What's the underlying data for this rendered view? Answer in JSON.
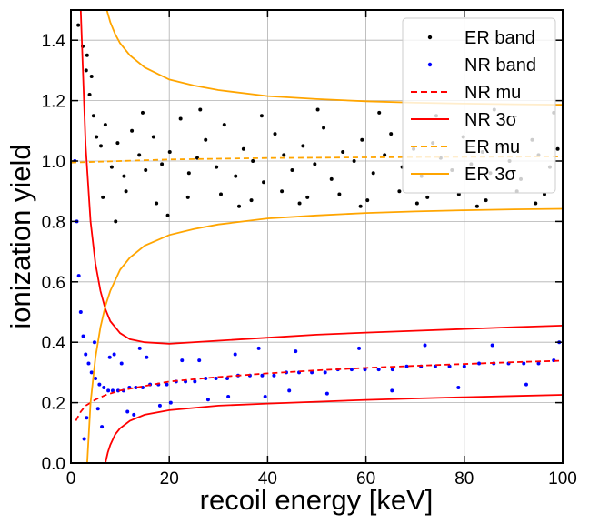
{
  "chart_data": {
    "type": "scatter",
    "xlabel": "recoil energy [keV]",
    "ylabel": "ionization yield",
    "xlim": [
      0,
      100
    ],
    "ylim": [
      0,
      1.5
    ],
    "xticks": [
      0,
      20,
      40,
      60,
      80,
      100
    ],
    "yticks": [
      0.0,
      0.2,
      0.4,
      0.6,
      0.8,
      1.0,
      1.2,
      1.4
    ],
    "xtick_labels": [
      "0",
      "20",
      "40",
      "60",
      "80",
      "100"
    ],
    "ytick_labels": [
      "0.0",
      "0.2",
      "0.4",
      "0.6",
      "0.8",
      "1.0",
      "1.2",
      "1.4"
    ],
    "grid": true,
    "legend_position": "top-right",
    "series": [
      {
        "name": "ER band",
        "kind": "points",
        "color": "#000000",
        "x": [
          1.5,
          2.4,
          3.1,
          3.8,
          4.6,
          5.2,
          6.1,
          7.0,
          8.3,
          9.5,
          10.8,
          12.4,
          13.9,
          15.2,
          16.8,
          18.5,
          20.1,
          22.3,
          24.0,
          25.7,
          27.4,
          29.6,
          31.2,
          33.5,
          35.1,
          37.0,
          39.2,
          41.5,
          43.3,
          45.0,
          47.2,
          49.6,
          51.4,
          53.0,
          55.3,
          57.6,
          59.2,
          61.5,
          63.8,
          65.1,
          67.4,
          69.7,
          71.3,
          73.6,
          75.2,
          77.5,
          79.8,
          81.4,
          83.7,
          85.3,
          87.6,
          89.2,
          91.5,
          93.8,
          95.1,
          97.4,
          99.0,
          6.5,
          11.2,
          17.4,
          23.8,
          30.5,
          36.7,
          42.9,
          48.1,
          54.6,
          60.3,
          66.8,
          72.5,
          78.9,
          84.4,
          90.7,
          96.3,
          14.6,
          26.3,
          38.8,
          50.2,
          62.7,
          74.3,
          86.1,
          98.2,
          9.1,
          19.7,
          34.2,
          46.5,
          58.9,
          70.4,
          82.6,
          94.5,
          4.2,
          3.3
        ],
        "y": [
          1.45,
          1.38,
          1.3,
          1.22,
          1.15,
          1.08,
          1.05,
          1.12,
          0.98,
          1.06,
          0.95,
          1.1,
          1.02,
          0.97,
          1.08,
          0.99,
          1.03,
          1.14,
          0.96,
          1.01,
          1.07,
          0.98,
          1.12,
          0.95,
          1.04,
          1.0,
          0.93,
          1.09,
          1.02,
          0.97,
          1.05,
          0.99,
          1.11,
          0.94,
          1.03,
          1.0,
          1.07,
          0.96,
          1.02,
          1.09,
          0.98,
          1.04,
          0.95,
          1.06,
          1.01,
          0.97,
          1.08,
          0.99,
          1.03,
          0.96,
          1.05,
          1.0,
          0.94,
          1.07,
          1.02,
          0.98,
          1.04,
          0.88,
          0.9,
          0.86,
          0.88,
          0.89,
          0.87,
          0.9,
          0.88,
          0.89,
          0.87,
          0.9,
          0.88,
          0.89,
          0.87,
          0.9,
          0.89,
          1.16,
          1.17,
          1.15,
          1.17,
          1.16,
          1.15,
          1.17,
          1.16,
          0.8,
          0.82,
          0.85,
          0.86,
          0.85,
          0.86,
          0.85,
          0.86,
          1.28,
          1.35
        ]
      },
      {
        "name": "NR band",
        "kind": "points",
        "color": "#0000ff",
        "x": [
          0.8,
          1.2,
          1.6,
          2.0,
          2.5,
          3.0,
          3.6,
          4.2,
          5.0,
          5.8,
          6.7,
          7.6,
          8.5,
          9.6,
          10.7,
          11.9,
          13.2,
          14.6,
          16.1,
          17.8,
          19.5,
          21.4,
          23.3,
          25.2,
          27.4,
          29.5,
          31.8,
          34.0,
          36.4,
          38.9,
          41.3,
          43.8,
          46.4,
          49.0,
          51.7,
          54.3,
          57.1,
          59.8,
          62.6,
          65.4,
          68.3,
          71.2,
          74.1,
          77.0,
          80.0,
          83.0,
          86.0,
          89.0,
          92.1,
          95.1,
          98.2,
          3.2,
          5.5,
          7.9,
          10.3,
          12.8,
          15.4,
          18.1,
          22.6,
          27.9,
          33.4,
          39.5,
          45.7,
          52.1,
          58.6,
          65.3,
          72.0,
          78.8,
          85.7,
          92.6,
          99.3,
          2.7,
          4.8,
          6.3,
          8.8,
          11.5,
          14.0,
          20.3,
          26.1,
          32.0,
          38.2,
          44.4
        ],
        "y": [
          1.0,
          0.8,
          0.62,
          0.5,
          0.42,
          0.36,
          0.33,
          0.3,
          0.28,
          0.26,
          0.25,
          0.24,
          0.24,
          0.24,
          0.24,
          0.25,
          0.25,
          0.25,
          0.26,
          0.26,
          0.26,
          0.27,
          0.27,
          0.27,
          0.28,
          0.28,
          0.28,
          0.29,
          0.29,
          0.29,
          0.29,
          0.3,
          0.3,
          0.3,
          0.3,
          0.31,
          0.31,
          0.31,
          0.31,
          0.31,
          0.32,
          0.32,
          0.32,
          0.32,
          0.32,
          0.33,
          0.33,
          0.33,
          0.33,
          0.33,
          0.34,
          0.15,
          0.18,
          0.35,
          0.33,
          0.16,
          0.35,
          0.19,
          0.34,
          0.21,
          0.36,
          0.22,
          0.37,
          0.23,
          0.38,
          0.24,
          0.39,
          0.25,
          0.39,
          0.26,
          0.4,
          0.08,
          0.4,
          0.12,
          0.36,
          0.17,
          0.38,
          0.2,
          0.34,
          0.22,
          0.38,
          0.24
        ]
      },
      {
        "name": "NR mu",
        "kind": "line",
        "style": "dashed",
        "color": "#ff0000",
        "x": [
          1,
          2,
          3,
          5,
          7,
          10,
          15,
          20,
          30,
          40,
          50,
          60,
          70,
          80,
          90,
          100
        ],
        "y": [
          0.14,
          0.17,
          0.19,
          0.21,
          0.225,
          0.24,
          0.255,
          0.27,
          0.285,
          0.297,
          0.307,
          0.315,
          0.322,
          0.328,
          0.334,
          0.339
        ]
      },
      {
        "name": "NR 3σ upper",
        "kind": "line",
        "style": "solid",
        "color": "#ff0000",
        "x": [
          2,
          3,
          4,
          5,
          6,
          7,
          8,
          10,
          12,
          15,
          20,
          30,
          40,
          50,
          60,
          70,
          80,
          90,
          100
        ],
        "y": [
          1.5,
          1.05,
          0.8,
          0.66,
          0.57,
          0.51,
          0.47,
          0.43,
          0.41,
          0.4,
          0.395,
          0.405,
          0.415,
          0.425,
          0.432,
          0.438,
          0.444,
          0.45,
          0.455
        ]
      },
      {
        "name": "NR 3σ lower",
        "kind": "line",
        "style": "solid",
        "color": "#ff0000",
        "x": [
          7.0,
          7.5,
          8,
          9,
          10,
          12,
          15,
          20,
          30,
          40,
          50,
          60,
          70,
          80,
          90,
          100
        ],
        "y": [
          0.0,
          0.035,
          0.06,
          0.095,
          0.115,
          0.14,
          0.16,
          0.175,
          0.19,
          0.197,
          0.203,
          0.209,
          0.214,
          0.218,
          0.222,
          0.226
        ]
      },
      {
        "name": "ER mu",
        "kind": "line",
        "style": "dashed",
        "color": "#ffa500",
        "x": [
          0,
          20,
          40,
          60,
          80,
          100
        ],
        "y": [
          0.995,
          1.005,
          1.01,
          1.012,
          1.014,
          1.015
        ]
      },
      {
        "name": "ER 3σ upper",
        "kind": "line",
        "style": "solid",
        "color": "#ffa500",
        "x": [
          7.3,
          8,
          9,
          10,
          12,
          15,
          20,
          25,
          30,
          40,
          50,
          60,
          70,
          80,
          90,
          100
        ],
        "y": [
          1.5,
          1.46,
          1.42,
          1.39,
          1.35,
          1.31,
          1.27,
          1.25,
          1.235,
          1.215,
          1.205,
          1.198,
          1.193,
          1.19,
          1.188,
          1.186
        ]
      },
      {
        "name": "ER 3σ lower",
        "kind": "line",
        "style": "solid",
        "color": "#ffa500",
        "x": [
          3.3,
          4,
          5,
          6,
          7,
          8,
          10,
          12,
          15,
          20,
          25,
          30,
          40,
          50,
          60,
          70,
          80,
          90,
          100
        ],
        "y": [
          0.0,
          0.2,
          0.35,
          0.45,
          0.52,
          0.57,
          0.64,
          0.68,
          0.72,
          0.755,
          0.775,
          0.79,
          0.81,
          0.82,
          0.828,
          0.833,
          0.837,
          0.84,
          0.842
        ]
      }
    ],
    "legend": [
      {
        "label": "ER band",
        "marker": "dot",
        "color": "#000000"
      },
      {
        "label": "NR band",
        "marker": "dot",
        "color": "#0000ff"
      },
      {
        "label": "NR mu",
        "marker": "dashed",
        "color": "#ff0000"
      },
      {
        "label": "NR 3σ",
        "marker": "solid",
        "color": "#ff0000"
      },
      {
        "label": "ER mu",
        "marker": "dashed",
        "color": "#ffa500"
      },
      {
        "label": "ER 3σ",
        "marker": "solid",
        "color": "#ffa500"
      }
    ]
  }
}
